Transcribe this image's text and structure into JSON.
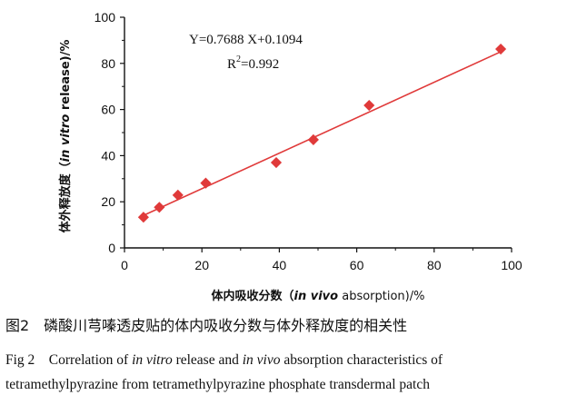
{
  "chart_data": {
    "type": "scatter",
    "xlabel_parts": [
      "体内吸收分数（",
      "in vivo",
      " absorption)/%"
    ],
    "ylabel_parts": [
      "体外释放度（",
      "in vitro",
      " release)/%"
    ],
    "xlim": [
      0,
      100
    ],
    "ylim": [
      0,
      100
    ],
    "x_ticks": [
      "0",
      "20",
      "40",
      "60",
      "80",
      "100"
    ],
    "y_ticks": [
      "0",
      "20",
      "40",
      "60",
      "80",
      "100"
    ],
    "points": [
      {
        "x": 4.9,
        "y": 13.3
      },
      {
        "x": 9.0,
        "y": 17.6
      },
      {
        "x": 13.8,
        "y": 22.9
      },
      {
        "x": 21.0,
        "y": 28.1
      },
      {
        "x": 39.2,
        "y": 37.0
      },
      {
        "x": 48.8,
        "y": 46.9
      },
      {
        "x": 63.2,
        "y": 61.8
      },
      {
        "x": 97.2,
        "y": 86.2
      }
    ],
    "fit": {
      "slope": 0.7688,
      "intercept": 0.1094,
      "x_range": [
        4,
        98
      ]
    },
    "equation_text": "Y=0.7688 X+0.1094",
    "r2_label": "R",
    "r2_sup": "2",
    "r2_value": "=0.992",
    "colors": {
      "marker": "#e03a3a",
      "line": "#e03a3a",
      "axis": "#111111"
    }
  },
  "caption": {
    "zh": "图2　磷酸川芎嗪透皮贴的体内吸收分数与体外释放度的相关性",
    "en_parts": [
      "Fig 2　Correlation of ",
      "in vitro",
      " release and ",
      "in vivo",
      " absorption characteristics of"
    ],
    "en_line2": "tetramethylpyrazine from tetramethylpyrazine phosphate transdermal patch"
  }
}
